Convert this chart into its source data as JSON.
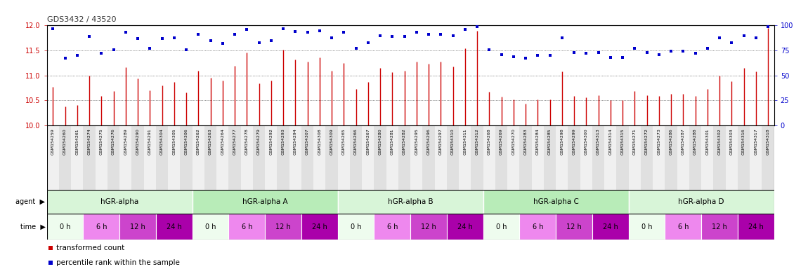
{
  "title": "GDS3432 / 43520",
  "samples": [
    "GSM154259",
    "GSM154260",
    "GSM154261",
    "GSM154274",
    "GSM154275",
    "GSM154276",
    "GSM154289",
    "GSM154290",
    "GSM154291",
    "GSM154304",
    "GSM154305",
    "GSM154306",
    "GSM154262",
    "GSM154263",
    "GSM154264",
    "GSM154277",
    "GSM154278",
    "GSM154279",
    "GSM154292",
    "GSM154293",
    "GSM154294",
    "GSM154307",
    "GSM154308",
    "GSM154309",
    "GSM154265",
    "GSM154266",
    "GSM154267",
    "GSM154280",
    "GSM154281",
    "GSM154282",
    "GSM154295",
    "GSM154296",
    "GSM154297",
    "GSM154310",
    "GSM154311",
    "GSM154312",
    "GSM154268",
    "GSM154269",
    "GSM154270",
    "GSM154283",
    "GSM154284",
    "GSM154285",
    "GSM154298",
    "GSM154299",
    "GSM154300",
    "GSM154313",
    "GSM154314",
    "GSM154315",
    "GSM154271",
    "GSM154272",
    "GSM154273",
    "GSM154286",
    "GSM154287",
    "GSM154288",
    "GSM154301",
    "GSM154302",
    "GSM154303",
    "GSM154316",
    "GSM154317",
    "GSM154318"
  ],
  "red_values": [
    10.77,
    10.38,
    10.4,
    11.0,
    10.58,
    10.69,
    11.16,
    10.93,
    10.7,
    10.79,
    10.87,
    10.65,
    11.09,
    10.95,
    10.89,
    11.19,
    11.46,
    10.84,
    10.9,
    11.52,
    11.31,
    11.27,
    11.36,
    11.09,
    11.25,
    10.73,
    10.87,
    11.15,
    11.07,
    11.09,
    11.28,
    11.23,
    11.27,
    11.18,
    11.54,
    11.9,
    10.67,
    10.57,
    10.52,
    10.43,
    10.51,
    10.52,
    11.08,
    10.59,
    10.56,
    10.6,
    10.5,
    10.5,
    10.68,
    10.6,
    10.59,
    10.63,
    10.63,
    10.58,
    10.73,
    11.0,
    10.88,
    11.15,
    11.08,
    11.95
  ],
  "blue_values": [
    97,
    67,
    70,
    89,
    72,
    76,
    93,
    87,
    77,
    87,
    88,
    76,
    91,
    85,
    82,
    91,
    96,
    83,
    85,
    97,
    94,
    93,
    95,
    88,
    93,
    77,
    83,
    90,
    89,
    89,
    93,
    91,
    91,
    90,
    96,
    99,
    76,
    71,
    69,
    67,
    70,
    70,
    88,
    73,
    72,
    73,
    68,
    68,
    77,
    73,
    71,
    74,
    74,
    72,
    77,
    88,
    83,
    90,
    88,
    99
  ],
  "agents": [
    "hGR-alpha",
    "hGR-alpha A",
    "hGR-alpha B",
    "hGR-alpha C",
    "hGR-alpha D"
  ],
  "agent_starts": [
    0,
    12,
    24,
    36,
    48
  ],
  "agent_ends": [
    12,
    24,
    36,
    48,
    60
  ],
  "agent_colors": [
    "#d8f5d8",
    "#b8ecb8",
    "#d8f5d8",
    "#b8ecb8",
    "#d8f5d8"
  ],
  "time_labels": [
    "0 h",
    "6 h",
    "12 h",
    "24 h"
  ],
  "time_colors": [
    "#eefcee",
    "#ee88ee",
    "#cc44cc",
    "#aa00aa"
  ],
  "ylim_left": [
    10.0,
    12.0
  ],
  "ylim_right": [
    0,
    100
  ],
  "yticks_left": [
    10.0,
    10.5,
    11.0,
    11.5,
    12.0
  ],
  "yticks_right": [
    0,
    25,
    50,
    75,
    100
  ],
  "bar_color": "#cc0000",
  "dot_color": "#0000cc",
  "title_color": "#333333",
  "left_tick_color": "#cc0000",
  "right_tick_color": "#0000cc",
  "background_color": "#ffffff",
  "gridline_color": "#333333",
  "n_samples": 60
}
